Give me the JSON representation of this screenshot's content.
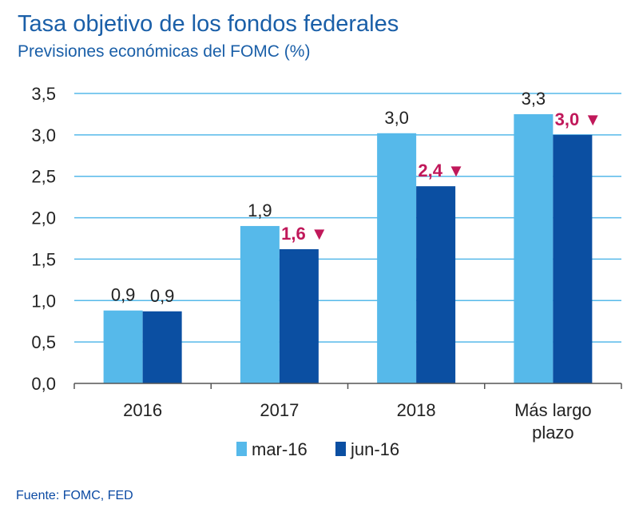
{
  "header": {
    "title": "Tasa objetivo de los fondos federales",
    "subtitle": "Previsiones económicas del FOMC (%)"
  },
  "footer": {
    "source": "Fuente: FOMC, FED"
  },
  "chart_data": {
    "type": "bar",
    "title": "Tasa objetivo de los fondos federales",
    "subtitle": "Previsiones económicas del FOMC (%)",
    "xlabel": "",
    "ylabel": "",
    "ylim": [
      0,
      3.5
    ],
    "yticks": [
      0,
      0.5,
      1.0,
      1.5,
      2.0,
      2.5,
      3.0,
      3.5
    ],
    "ytick_labels": [
      "0,0",
      "0,5",
      "1,0",
      "1,5",
      "2,0",
      "2,5",
      "3,0",
      "3,5"
    ],
    "grid": true,
    "legend_position": "bottom",
    "categories": [
      "2016",
      "2017",
      "2018",
      "Más largo plazo"
    ],
    "category_labels": [
      [
        "2016"
      ],
      [
        "2017"
      ],
      [
        "2018"
      ],
      [
        "Más largo",
        "plazo"
      ]
    ],
    "series": [
      {
        "name": "mar-16",
        "color": "#56b9ea",
        "values": [
          0.88,
          1.9,
          3.02,
          3.25
        ],
        "labels": [
          "0,9",
          "1,9",
          "3,0",
          "3,3"
        ],
        "label_style": "normal"
      },
      {
        "name": "jun-16",
        "color": "#0b4fa2",
        "values": [
          0.87,
          1.62,
          2.38,
          3.0
        ],
        "labels": [
          "0,9",
          "1,6 ▼",
          "2,4 ▼",
          "3,0 ▼"
        ],
        "label_style": [
          "normal",
          "highlight",
          "highlight",
          "highlight"
        ]
      }
    ],
    "colors": {
      "grid": "#56b9ea",
      "axis": "#555555",
      "highlight": "#c0185a"
    }
  }
}
